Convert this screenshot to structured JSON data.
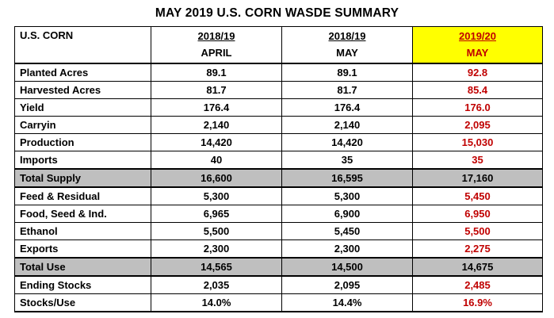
{
  "title": "MAY 2019 U.S. CORN WASDE SUMMARY",
  "header": {
    "label": "U.S. CORN",
    "columns": [
      {
        "year": "2018/19",
        "month": "APRIL"
      },
      {
        "year": "2018/19",
        "month": "MAY"
      },
      {
        "year": "2019/20",
        "month": "MAY"
      }
    ]
  },
  "rows": [
    {
      "label": "Planted Acres",
      "values": [
        "89.1",
        "89.1",
        "92.8"
      ]
    },
    {
      "label": "Harvested Acres",
      "values": [
        "81.7",
        "81.7",
        "85.4"
      ]
    },
    {
      "label": "Yield",
      "values": [
        "176.4",
        "176.4",
        "176.0"
      ]
    },
    {
      "label": "Carryin",
      "values": [
        "2,140",
        "2,140",
        "2,095"
      ]
    },
    {
      "label": "Production",
      "values": [
        "14,420",
        "14,420",
        "15,030"
      ]
    },
    {
      "label": "Imports",
      "values": [
        "40",
        "35",
        "35"
      ]
    },
    {
      "label": "Total Supply",
      "values": [
        "16,600",
        "16,595",
        "17,160"
      ]
    },
    {
      "label": "Feed & Residual",
      "values": [
        "5,300",
        "5,300",
        "5,450"
      ]
    },
    {
      "label": "Food, Seed & Ind.",
      "values": [
        "6,965",
        "6,900",
        "6,950"
      ]
    },
    {
      "label": "Ethanol",
      "values": [
        "5,500",
        "5,450",
        "5,500"
      ]
    },
    {
      "label": "Exports",
      "values": [
        "2,300",
        "2,300",
        "2,275"
      ]
    },
    {
      "label": "Total Use",
      "values": [
        "14,565",
        "14,500",
        "14,675"
      ]
    },
    {
      "label": "Ending Stocks",
      "values": [
        "2,035",
        "2,095",
        "2,485"
      ]
    },
    {
      "label": "Stocks/Use",
      "values": [
        "14.0%",
        "14.4%",
        "16.9%"
      ]
    }
  ],
  "colors": {
    "highlight": "#ffff00",
    "total_row": "#bfbfbf",
    "forecast_text": "#c00000"
  }
}
